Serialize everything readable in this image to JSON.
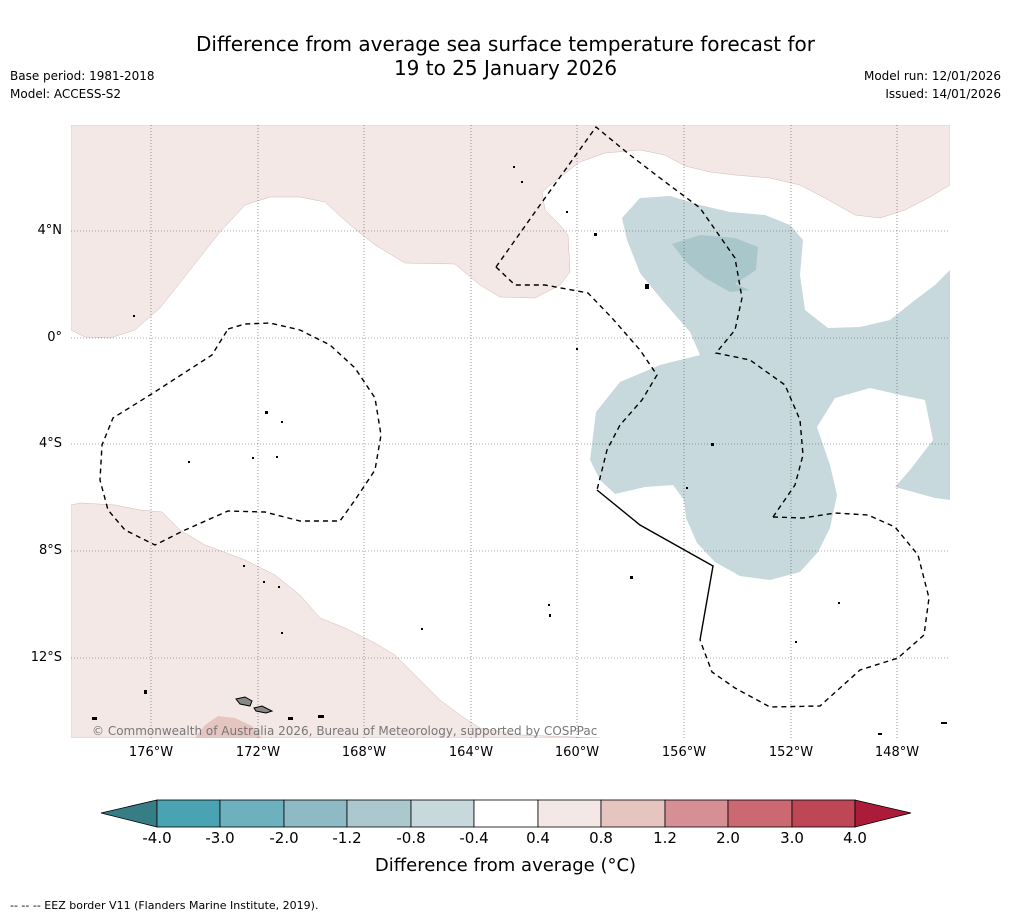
{
  "title": {
    "line1": "Difference from average sea surface temperature forecast for",
    "line2": "19 to 25 January 2026"
  },
  "meta": {
    "base_period": "Base period: 1981-2018",
    "model": "Model: ACCESS-S2",
    "model_run": "Model run: 12/01/2026",
    "issued": "Issued: 14/01/2026"
  },
  "map": {
    "lat_ticks": [
      "4°N",
      "0°",
      "4°S",
      "8°S",
      "12°S"
    ],
    "lon_ticks": [
      "176°W",
      "172°W",
      "168°W",
      "164°W",
      "160°W",
      "156°W",
      "152°W",
      "148°W"
    ],
    "copyright": "© Commonwealth of Australia 2026, Bureau of Meteorology, supported by COSPPac",
    "colors": {
      "warm_light": "#f4e8e7",
      "warm_medium": "#e6c4c0",
      "cool_light": "#c7d9dd",
      "cool_medium": "#a9c6cb",
      "grid": "#555555"
    }
  },
  "colorbar": {
    "labels": [
      "-4.0",
      "-3.0",
      "-2.0",
      "-1.2",
      "-0.8",
      "-0.4",
      "0.4",
      "0.8",
      "1.2",
      "2.0",
      "3.0",
      "4.0"
    ],
    "colors": [
      "#4aa3b3",
      "#6eb1be",
      "#8ebac5",
      "#abc8ce",
      "#c7d9dd",
      "#ffffff",
      "#f4e8e7",
      "#e6c4c0",
      "#d68f95",
      "#cb6872",
      "#bf4655"
    ],
    "left_extend_color": "#367d86",
    "right_extend_color": "#ac1c3a",
    "title": "Difference from average (°C)"
  },
  "footnote": "--  --  -- EEZ border V11 (Flanders Marine Institute, 2019)."
}
